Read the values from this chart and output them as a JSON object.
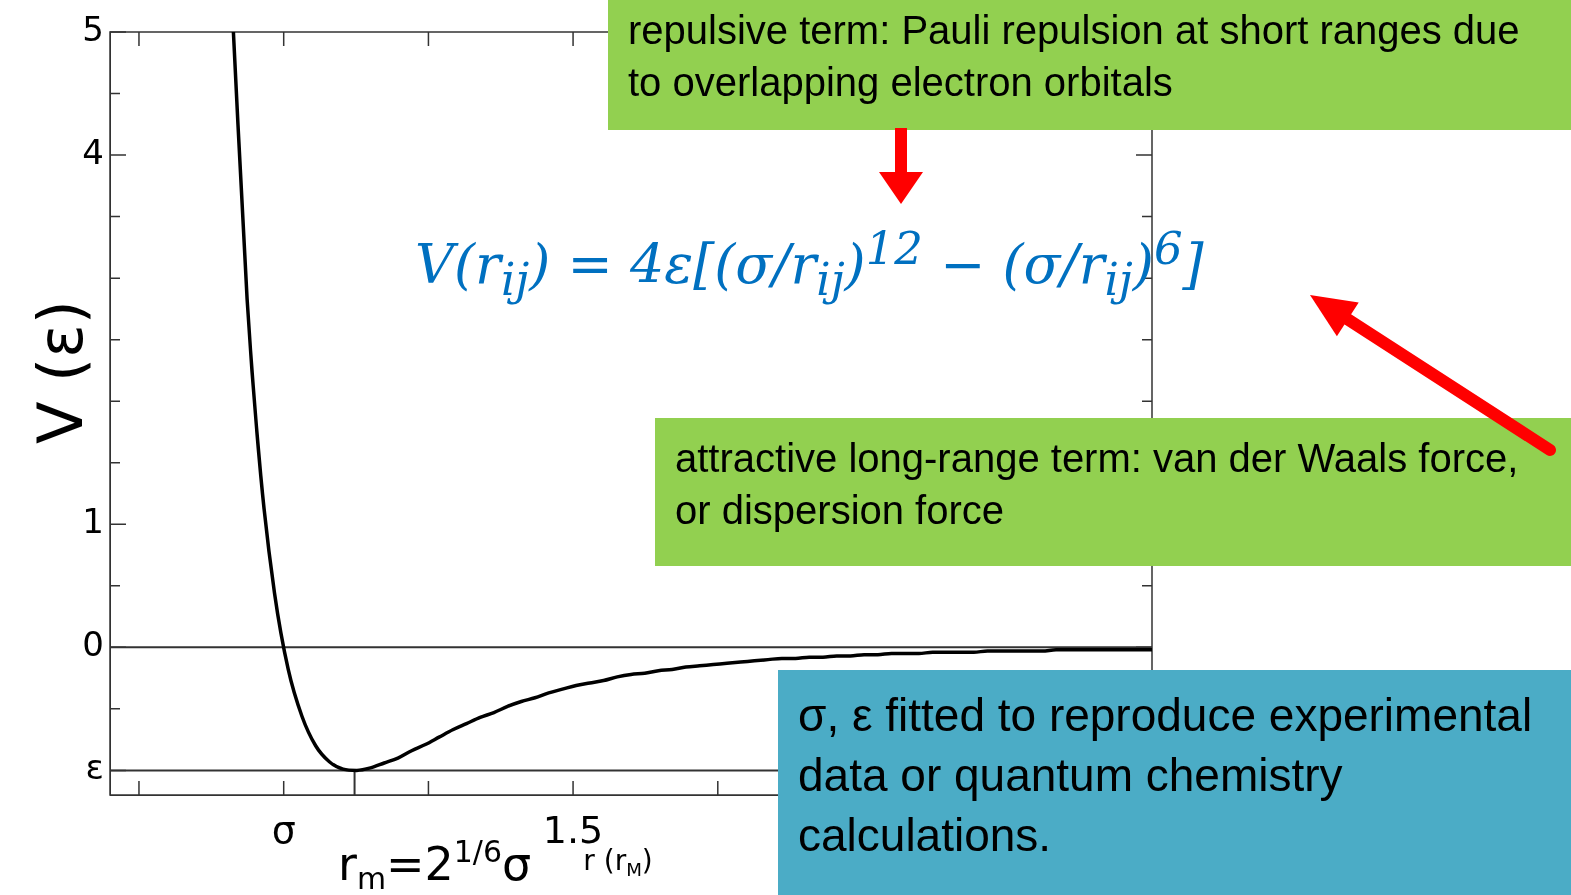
{
  "chart_data": {
    "type": "line",
    "xlabel": "r (r$_{M}$)",
    "ylabel": "V (ε)",
    "categories": [
      null,
      null,
      null,
      null,
      null,
      null,
      null,
      null,
      null,
      null,
      null,
      null,
      null,
      null,
      null,
      null,
      null,
      null,
      null,
      null,
      null,
      null,
      null,
      null,
      null,
      null,
      null,
      null,
      null,
      null,
      null,
      null,
      null,
      null,
      null,
      null,
      null,
      null,
      null,
      null,
      null,
      null,
      null,
      null,
      null,
      null,
      null,
      null,
      null,
      null,
      null,
      null,
      null,
      null,
      null,
      null,
      null,
      null,
      null,
      null,
      null,
      null,
      null,
      null,
      null,
      null,
      null,
      null,
      null,
      null,
      null,
      null,
      null,
      null,
      null,
      null,
      null
    ],
    "series": [
      {
        "color": "#000000",
        "values": [
          null,
          null,
          null,
          null,
          null,
          null,
          null,
          null,
          null,
          5.0,
          2.83,
          1.39,
          0.44,
          -0.18,
          -0.56,
          -0.8,
          -0.93,
          -0.99,
          -1.0,
          -0.98,
          -0.94,
          -0.9,
          -0.84,
          -0.79,
          -0.73,
          -0.67,
          -0.62,
          -0.57,
          -0.53,
          -0.48,
          -0.44,
          -0.41,
          -0.37,
          -0.34,
          -0.31,
          -0.29,
          -0.27,
          -0.24,
          -0.22,
          -0.21,
          -0.19,
          -0.18,
          -0.16,
          -0.15,
          -0.14,
          -0.13,
          -0.12,
          -0.11,
          -0.1,
          -0.09,
          -0.09,
          -0.08,
          -0.08,
          -0.07,
          -0.07,
          -0.06,
          -0.06,
          -0.05,
          -0.05,
          -0.05,
          -0.04,
          -0.04,
          -0.04,
          -0.04,
          -0.03,
          -0.03,
          -0.03,
          -0.03,
          -0.03,
          -0.02,
          -0.02,
          -0.02,
          -0.02,
          -0.02,
          -0.02,
          -0.02,
          -0.02
        ]
      }
    ],
    "ylim": [
      -1.2,
      5
    ],
    "yticks": [
      {
        "value": -1,
        "label": "ε"
      },
      {
        "value": -0.5,
        "label": null
      },
      {
        "value": 0,
        "label": "0"
      },
      {
        "value": 0.5,
        "label": null
      },
      {
        "value": 1,
        "label": "1"
      },
      {
        "value": 1.5,
        "label": null
      },
      {
        "value": 2,
        "label": null
      },
      {
        "value": 2.5,
        "label": null
      },
      {
        "value": 3,
        "label": null
      },
      {
        "value": 3.5,
        "label": null
      },
      {
        "value": 4,
        "label": "4"
      },
      {
        "value": 4.5,
        "label": null
      },
      {
        "value": 5,
        "label": "5"
      }
    ],
    "ref_lines": [
      {
        "axis": "y",
        "value": 0,
        "color": "#333333"
      },
      {
        "axis": "y",
        "value": -1,
        "color": "#333333"
      }
    ],
    "annotations": [
      "V(r$_{ij}$) = 4ε[(σ/r$_{ij}$)$^{12}$ − (σ/r$_{ij}$)$^{6}$]",
      "repulsive term: Pauli repulsion at short ranges due to overlapping electron orbitals",
      "attractive long-range term: van der Waals force, or dispersion force",
      "σ, ε fitted to reproduce experimental data or quantum chemistry calculations.",
      "σ",
      "1.5",
      {
        "text": "r$_{m}$=2$^{1/6}$σ",
        "y": -1
      }
    ],
    "grid": false,
    "legend": false,
    "marker": "none",
    "line_style": "solid"
  }
}
